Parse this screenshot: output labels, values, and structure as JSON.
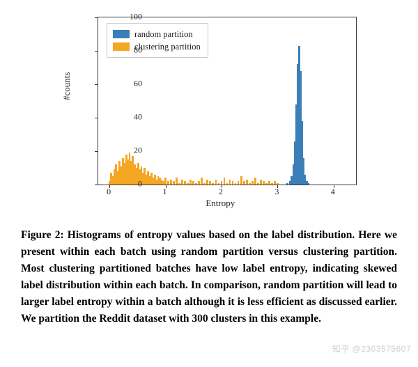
{
  "chart": {
    "type": "histogram",
    "xlabel": "Entropy",
    "ylabel": "#counts",
    "xlim": [
      -0.2,
      4.4
    ],
    "ylim": [
      0,
      100
    ],
    "xticks": [
      0,
      1,
      2,
      3,
      4
    ],
    "yticks": [
      0,
      20,
      40,
      60,
      80,
      100
    ],
    "tick_fontsize": 12,
    "label_fontsize": 13,
    "background_color": "#ffffff",
    "border_color": "#333333",
    "bar_width_data": 0.035,
    "legend": {
      "position": "upper-left",
      "border_color": "#cccccc",
      "items": [
        {
          "label": "random partition",
          "color": "#3b7fb8"
        },
        {
          "label": "clustering partition",
          "color": "#f5a623"
        }
      ]
    },
    "series": {
      "random": {
        "color": "#3b7fb8",
        "bars": [
          {
            "x": 3.18,
            "h": 1
          },
          {
            "x": 3.22,
            "h": 2
          },
          {
            "x": 3.25,
            "h": 5
          },
          {
            "x": 3.28,
            "h": 12
          },
          {
            "x": 3.31,
            "h": 26
          },
          {
            "x": 3.34,
            "h": 48
          },
          {
            "x": 3.365,
            "h": 72
          },
          {
            "x": 3.39,
            "h": 83
          },
          {
            "x": 3.415,
            "h": 68
          },
          {
            "x": 3.44,
            "h": 38
          },
          {
            "x": 3.465,
            "h": 16
          },
          {
            "x": 3.49,
            "h": 6
          },
          {
            "x": 3.52,
            "h": 2
          },
          {
            "x": 3.55,
            "h": 1
          }
        ]
      },
      "clustering": {
        "color": "#f5a623",
        "bars": [
          {
            "x": 0.0,
            "h": 2
          },
          {
            "x": 0.03,
            "h": 7
          },
          {
            "x": 0.06,
            "h": 5
          },
          {
            "x": 0.09,
            "h": 9
          },
          {
            "x": 0.12,
            "h": 12
          },
          {
            "x": 0.15,
            "h": 8
          },
          {
            "x": 0.18,
            "h": 14
          },
          {
            "x": 0.21,
            "h": 11
          },
          {
            "x": 0.24,
            "h": 16
          },
          {
            "x": 0.27,
            "h": 13
          },
          {
            "x": 0.3,
            "h": 18
          },
          {
            "x": 0.33,
            "h": 15
          },
          {
            "x": 0.36,
            "h": 19
          },
          {
            "x": 0.39,
            "h": 14
          },
          {
            "x": 0.42,
            "h": 17
          },
          {
            "x": 0.45,
            "h": 12
          },
          {
            "x": 0.48,
            "h": 10
          },
          {
            "x": 0.51,
            "h": 13
          },
          {
            "x": 0.54,
            "h": 9
          },
          {
            "x": 0.57,
            "h": 11
          },
          {
            "x": 0.6,
            "h": 7
          },
          {
            "x": 0.63,
            "h": 10
          },
          {
            "x": 0.66,
            "h": 6
          },
          {
            "x": 0.69,
            "h": 8
          },
          {
            "x": 0.72,
            "h": 5
          },
          {
            "x": 0.75,
            "h": 7
          },
          {
            "x": 0.78,
            "h": 4
          },
          {
            "x": 0.81,
            "h": 6
          },
          {
            "x": 0.84,
            "h": 3
          },
          {
            "x": 0.87,
            "h": 5
          },
          {
            "x": 0.9,
            "h": 4
          },
          {
            "x": 0.93,
            "h": 3
          },
          {
            "x": 0.96,
            "h": 2
          },
          {
            "x": 1.0,
            "h": 4
          },
          {
            "x": 1.05,
            "h": 2
          },
          {
            "x": 1.1,
            "h": 3
          },
          {
            "x": 1.15,
            "h": 2
          },
          {
            "x": 1.2,
            "h": 4
          },
          {
            "x": 1.25,
            "h": 1
          },
          {
            "x": 1.3,
            "h": 3
          },
          {
            "x": 1.35,
            "h": 2
          },
          {
            "x": 1.4,
            "h": 1
          },
          {
            "x": 1.45,
            "h": 3
          },
          {
            "x": 1.5,
            "h": 2
          },
          {
            "x": 1.55,
            "h": 1
          },
          {
            "x": 1.6,
            "h": 2
          },
          {
            "x": 1.65,
            "h": 4
          },
          {
            "x": 1.7,
            "h": 1
          },
          {
            "x": 1.75,
            "h": 3
          },
          {
            "x": 1.8,
            "h": 2
          },
          {
            "x": 1.85,
            "h": 1
          },
          {
            "x": 1.9,
            "h": 3
          },
          {
            "x": 1.95,
            "h": 1
          },
          {
            "x": 2.0,
            "h": 2
          },
          {
            "x": 2.05,
            "h": 4
          },
          {
            "x": 2.1,
            "h": 1
          },
          {
            "x": 2.15,
            "h": 3
          },
          {
            "x": 2.2,
            "h": 2
          },
          {
            "x": 2.25,
            "h": 1
          },
          {
            "x": 2.3,
            "h": 2
          },
          {
            "x": 2.35,
            "h": 5
          },
          {
            "x": 2.4,
            "h": 2
          },
          {
            "x": 2.45,
            "h": 3
          },
          {
            "x": 2.5,
            "h": 1
          },
          {
            "x": 2.55,
            "h": 2
          },
          {
            "x": 2.6,
            "h": 4
          },
          {
            "x": 2.65,
            "h": 1
          },
          {
            "x": 2.7,
            "h": 3
          },
          {
            "x": 2.75,
            "h": 2
          },
          {
            "x": 2.8,
            "h": 1
          },
          {
            "x": 2.85,
            "h": 2
          },
          {
            "x": 2.9,
            "h": 1
          },
          {
            "x": 2.95,
            "h": 2
          },
          {
            "x": 3.0,
            "h": 1
          }
        ]
      }
    }
  },
  "caption": "Figure 2: Histograms of entropy values based on the label distribution. Here we present within each batch using random partition versus clustering partition. Most clustering partitioned batches have low label entropy, indicating skewed label distribution within each batch. In comparison, random partition will lead to larger label entropy within a batch although it is less efficient as discussed earlier. We partition the Reddit dataset with 300 clusters in this example.",
  "watermark": "知乎 @2303575607"
}
